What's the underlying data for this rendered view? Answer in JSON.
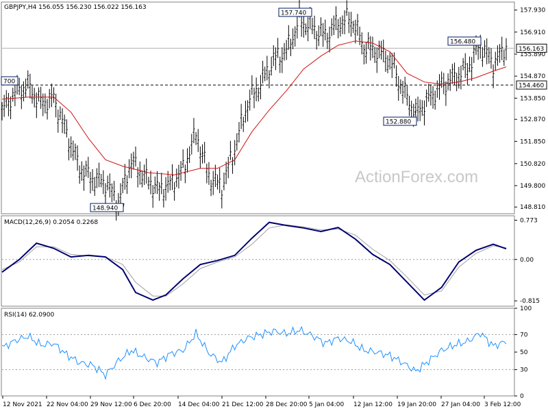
{
  "chart_data": [
    {
      "type": "candlestick",
      "title": "GBPJPY,H4  156.055 156.230 156.022 156.163",
      "ylim": [
        148.5,
        158.3
      ],
      "y_ticks": [
        "157.930",
        "156.910",
        "155.890",
        "154.870",
        "153.850",
        "152.870",
        "151.850",
        "150.820",
        "149.800",
        "148.810"
      ],
      "x_ticks": [
        "12 Nov 2021",
        "22 Nov 04:00",
        "29 Nov 12:00",
        "6 Dec 20:00",
        "14 Dec 04:00",
        "21 Dec 12:00",
        "28 Dec 20:00",
        "5 Jan 04:00",
        "12 Jan 12:00",
        "19 Jan 20:00",
        "27 Jan 04:00",
        "3 Feb 12:00"
      ],
      "current_price": "156.163",
      "support_line": "154.460",
      "annotations": [
        "700",
        "148.940",
        "157.740",
        "152.880",
        "156.480"
      ],
      "price_path": [
        {
          "x": 0,
          "y": 153.2
        },
        {
          "x": 3,
          "y": 154.1
        },
        {
          "x": 6,
          "y": 154.4
        },
        {
          "x": 9,
          "y": 153.6
        },
        {
          "x": 12,
          "y": 153.8
        },
        {
          "x": 15,
          "y": 152.2
        },
        {
          "x": 18,
          "y": 150.6
        },
        {
          "x": 21,
          "y": 150.1
        },
        {
          "x": 24,
          "y": 149.9
        },
        {
          "x": 27,
          "y": 149.0
        },
        {
          "x": 30,
          "y": 150.9
        },
        {
          "x": 33,
          "y": 150.2
        },
        {
          "x": 36,
          "y": 149.6
        },
        {
          "x": 39,
          "y": 149.8
        },
        {
          "x": 42,
          "y": 150.5
        },
        {
          "x": 45,
          "y": 152.2
        },
        {
          "x": 48,
          "y": 150.2
        },
        {
          "x": 51,
          "y": 149.7
        },
        {
          "x": 54,
          "y": 151.5
        },
        {
          "x": 57,
          "y": 153.6
        },
        {
          "x": 60,
          "y": 154.5
        },
        {
          "x": 63,
          "y": 155.6
        },
        {
          "x": 66,
          "y": 156.0
        },
        {
          "x": 69,
          "y": 157.4
        },
        {
          "x": 72,
          "y": 157.1
        },
        {
          "x": 75,
          "y": 156.7
        },
        {
          "x": 78,
          "y": 157.3
        },
        {
          "x": 81,
          "y": 157.5
        },
        {
          "x": 84,
          "y": 156.2
        },
        {
          "x": 87,
          "y": 156.0
        },
        {
          "x": 90,
          "y": 155.6
        },
        {
          "x": 93,
          "y": 154.2
        },
        {
          "x": 96,
          "y": 153.1
        },
        {
          "x": 99,
          "y": 153.8
        },
        {
          "x": 102,
          "y": 154.4
        },
        {
          "x": 105,
          "y": 154.8
        },
        {
          "x": 108,
          "y": 155.2
        },
        {
          "x": 111,
          "y": 156.3
        },
        {
          "x": 114,
          "y": 155.4
        },
        {
          "x": 117,
          "y": 156.2
        }
      ],
      "ma_path": [
        {
          "x": 0,
          "y": 153.8
        },
        {
          "x": 6,
          "y": 153.9
        },
        {
          "x": 12,
          "y": 153.9
        },
        {
          "x": 16,
          "y": 153.2
        },
        {
          "x": 20,
          "y": 152.0
        },
        {
          "x": 24,
          "y": 151.0
        },
        {
          "x": 28,
          "y": 150.7
        },
        {
          "x": 34,
          "y": 150.4
        },
        {
          "x": 40,
          "y": 150.3
        },
        {
          "x": 46,
          "y": 150.6
        },
        {
          "x": 50,
          "y": 150.6
        },
        {
          "x": 54,
          "y": 151.0
        },
        {
          "x": 58,
          "y": 152.3
        },
        {
          "x": 62,
          "y": 153.3
        },
        {
          "x": 66,
          "y": 154.2
        },
        {
          "x": 70,
          "y": 155.2
        },
        {
          "x": 74,
          "y": 155.8
        },
        {
          "x": 78,
          "y": 156.3
        },
        {
          "x": 82,
          "y": 156.5
        },
        {
          "x": 86,
          "y": 156.4
        },
        {
          "x": 90,
          "y": 156.0
        },
        {
          "x": 94,
          "y": 155.0
        },
        {
          "x": 98,
          "y": 154.6
        },
        {
          "x": 102,
          "y": 154.5
        },
        {
          "x": 106,
          "y": 154.6
        },
        {
          "x": 110,
          "y": 154.8
        },
        {
          "x": 114,
          "y": 155.1
        },
        {
          "x": 117,
          "y": 155.3
        }
      ]
    },
    {
      "type": "line",
      "title": "MACD(12,26,9) 0.2054 0.2268",
      "ylim": [
        -0.92,
        0.86
      ],
      "y_ticks": [
        "0.773",
        "0.00",
        "-0.815"
      ],
      "macd": [
        {
          "x": 0,
          "y": -0.25
        },
        {
          "x": 4,
          "y": 0.0
        },
        {
          "x": 8,
          "y": 0.32
        },
        {
          "x": 12,
          "y": 0.22
        },
        {
          "x": 16,
          "y": 0.05
        },
        {
          "x": 20,
          "y": 0.08
        },
        {
          "x": 24,
          "y": 0.05
        },
        {
          "x": 28,
          "y": -0.2
        },
        {
          "x": 31,
          "y": -0.65
        },
        {
          "x": 35,
          "y": -0.8
        },
        {
          "x": 38,
          "y": -0.7
        },
        {
          "x": 42,
          "y": -0.38
        },
        {
          "x": 46,
          "y": -0.1
        },
        {
          "x": 50,
          "y": -0.02
        },
        {
          "x": 54,
          "y": 0.08
        },
        {
          "x": 58,
          "y": 0.42
        },
        {
          "x": 62,
          "y": 0.73
        },
        {
          "x": 66,
          "y": 0.67
        },
        {
          "x": 70,
          "y": 0.62
        },
        {
          "x": 74,
          "y": 0.55
        },
        {
          "x": 78,
          "y": 0.63
        },
        {
          "x": 82,
          "y": 0.4
        },
        {
          "x": 86,
          "y": 0.1
        },
        {
          "x": 90,
          "y": -0.1
        },
        {
          "x": 94,
          "y": -0.45
        },
        {
          "x": 98,
          "y": -0.8
        },
        {
          "x": 102,
          "y": -0.55
        },
        {
          "x": 106,
          "y": -0.05
        },
        {
          "x": 110,
          "y": 0.18
        },
        {
          "x": 114,
          "y": 0.3
        },
        {
          "x": 117,
          "y": 0.21
        }
      ],
      "signal": [
        {
          "x": 0,
          "y": -0.2
        },
        {
          "x": 4,
          "y": -0.05
        },
        {
          "x": 8,
          "y": 0.25
        },
        {
          "x": 12,
          "y": 0.25
        },
        {
          "x": 16,
          "y": 0.1
        },
        {
          "x": 20,
          "y": 0.07
        },
        {
          "x": 24,
          "y": 0.05
        },
        {
          "x": 28,
          "y": -0.1
        },
        {
          "x": 31,
          "y": -0.45
        },
        {
          "x": 35,
          "y": -0.72
        },
        {
          "x": 38,
          "y": -0.72
        },
        {
          "x": 42,
          "y": -0.48
        },
        {
          "x": 46,
          "y": -0.18
        },
        {
          "x": 50,
          "y": -0.05
        },
        {
          "x": 54,
          "y": 0.05
        },
        {
          "x": 58,
          "y": 0.3
        },
        {
          "x": 62,
          "y": 0.62
        },
        {
          "x": 66,
          "y": 0.68
        },
        {
          "x": 70,
          "y": 0.64
        },
        {
          "x": 74,
          "y": 0.58
        },
        {
          "x": 78,
          "y": 0.6
        },
        {
          "x": 82,
          "y": 0.48
        },
        {
          "x": 86,
          "y": 0.2
        },
        {
          "x": 90,
          "y": -0.02
        },
        {
          "x": 94,
          "y": -0.35
        },
        {
          "x": 98,
          "y": -0.7
        },
        {
          "x": 102,
          "y": -0.62
        },
        {
          "x": 106,
          "y": -0.15
        },
        {
          "x": 110,
          "y": 0.12
        },
        {
          "x": 114,
          "y": 0.27
        },
        {
          "x": 117,
          "y": 0.23
        }
      ]
    },
    {
      "type": "line",
      "title": "RSI(14) 62.0900",
      "ylim": [
        0,
        100
      ],
      "y_ticks": [
        "100",
        "70",
        "50",
        "30",
        "0"
      ],
      "levels": [
        70,
        30
      ],
      "rsi": [
        {
          "x": 0,
          "y": 55
        },
        {
          "x": 3,
          "y": 63
        },
        {
          "x": 6,
          "y": 68
        },
        {
          "x": 9,
          "y": 58
        },
        {
          "x": 12,
          "y": 60
        },
        {
          "x": 15,
          "y": 47
        },
        {
          "x": 18,
          "y": 38
        },
        {
          "x": 21,
          "y": 35
        },
        {
          "x": 24,
          "y": 24
        },
        {
          "x": 27,
          "y": 40
        },
        {
          "x": 30,
          "y": 52
        },
        {
          "x": 33,
          "y": 44
        },
        {
          "x": 36,
          "y": 38
        },
        {
          "x": 39,
          "y": 48
        },
        {
          "x": 42,
          "y": 52
        },
        {
          "x": 45,
          "y": 71
        },
        {
          "x": 48,
          "y": 49
        },
        {
          "x": 51,
          "y": 38
        },
        {
          "x": 54,
          "y": 57
        },
        {
          "x": 57,
          "y": 66
        },
        {
          "x": 60,
          "y": 70
        },
        {
          "x": 63,
          "y": 74
        },
        {
          "x": 66,
          "y": 71
        },
        {
          "x": 69,
          "y": 75
        },
        {
          "x": 72,
          "y": 69
        },
        {
          "x": 75,
          "y": 60
        },
        {
          "x": 78,
          "y": 66
        },
        {
          "x": 81,
          "y": 62
        },
        {
          "x": 84,
          "y": 52
        },
        {
          "x": 87,
          "y": 50
        },
        {
          "x": 90,
          "y": 46
        },
        {
          "x": 93,
          "y": 38
        },
        {
          "x": 96,
          "y": 28
        },
        {
          "x": 99,
          "y": 40
        },
        {
          "x": 102,
          "y": 52
        },
        {
          "x": 105,
          "y": 58
        },
        {
          "x": 108,
          "y": 62
        },
        {
          "x": 111,
          "y": 72
        },
        {
          "x": 114,
          "y": 57
        },
        {
          "x": 117,
          "y": 62
        }
      ]
    }
  ],
  "watermark": "ActionForex.com",
  "colors": {
    "price": "#000000",
    "ma": "#d01010",
    "macd": "#000070",
    "signal": "#a0a0a0",
    "rsi": "#1e90ff",
    "frame": "#808080",
    "grid": "#999999",
    "label_border": "#001a66"
  }
}
